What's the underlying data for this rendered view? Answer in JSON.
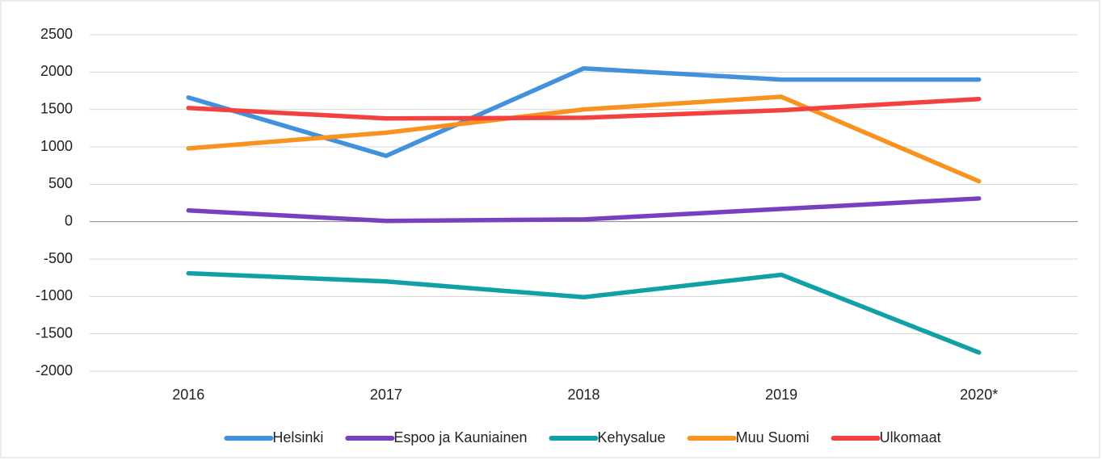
{
  "chart_data": {
    "type": "line",
    "categories": [
      "2016",
      "2017",
      "2018",
      "2019",
      "2020*"
    ],
    "series": [
      {
        "name": "Helsinki",
        "color": "#4191dd",
        "values": [
          1660,
          880,
          2050,
          1900,
          1900
        ]
      },
      {
        "name": "Espoo ja Kauniainen",
        "color": "#7840bf",
        "values": [
          150,
          10,
          30,
          170,
          310
        ]
      },
      {
        "name": "Kehysalue",
        "color": "#10a0a6",
        "values": [
          -690,
          -800,
          -1010,
          -710,
          -1750
        ]
      },
      {
        "name": "Muu Suomi",
        "color": "#f7931e",
        "values": [
          980,
          1190,
          1500,
          1670,
          540
        ]
      },
      {
        "name": "Ulkomaat",
        "color": "#f2413e",
        "values": [
          1520,
          1380,
          1390,
          1490,
          1640
        ]
      }
    ],
    "ylim": [
      -2000,
      2500
    ],
    "yticks": [
      -2000,
      -1500,
      -1000,
      -500,
      0,
      500,
      1000,
      1500,
      2000,
      2500
    ],
    "grid": true,
    "legend": "bottom"
  }
}
